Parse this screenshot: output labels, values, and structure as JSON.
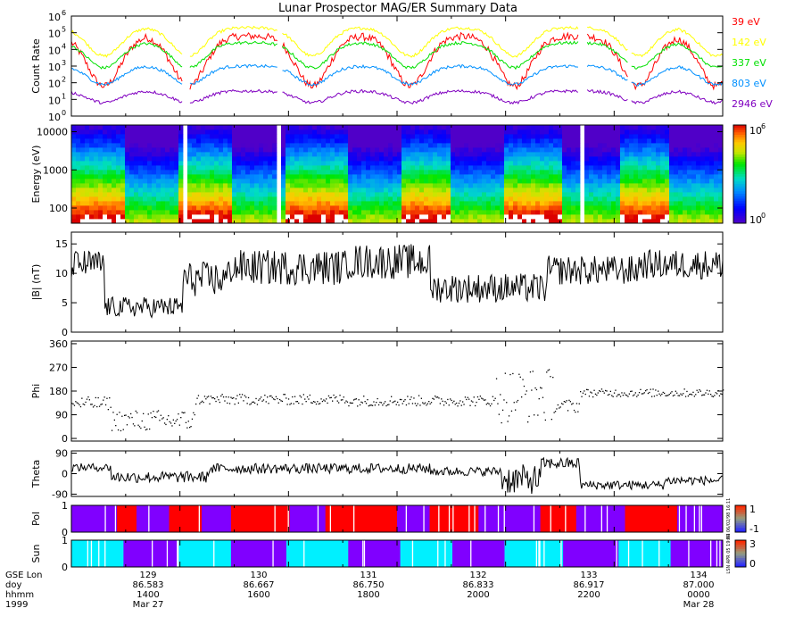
{
  "title": "Lunar Prospector MAG/ER Summary Data",
  "colors": {
    "frame": "#000000",
    "e39": "#ff0000",
    "e142": "#ffff00",
    "e337": "#00e000",
    "e803": "#0090ff",
    "e2946": "#8000c0",
    "pol_pos": "#ff0000",
    "pol_neg": "#8000ff",
    "sun_lit": "#00f0ff",
    "sun_dark": "#8000ff",
    "gap": "#ffffff"
  },
  "chart_data": [
    {
      "id": "count_rate",
      "type": "line",
      "ylabel": "Count Rate",
      "yscale": "log",
      "ylim": [
        1,
        1000000
      ],
      "ytick_base": "10",
      "yticks_exp": [
        "0",
        "1",
        "2",
        "3",
        "4",
        "5",
        "6"
      ],
      "series": [
        {
          "name": "39 eV",
          "color": "#ff0000",
          "shape": [
            1.8,
            4.8
          ]
        },
        {
          "name": "142 eV",
          "color": "#ffff00",
          "shape": [
            3.6,
            5.3
          ]
        },
        {
          "name": "337 eV",
          "color": "#00e000",
          "shape": [
            2.9,
            4.4
          ]
        },
        {
          "name": "803 eV",
          "color": "#0090ff",
          "shape": [
            1.9,
            3.0
          ]
        },
        {
          "name": "2946 eV",
          "color": "#8000c0",
          "shape": [
            0.8,
            1.5
          ]
        }
      ]
    },
    {
      "id": "energy_spectrogram",
      "type": "heatmap",
      "ylabel": "Energy (eV)",
      "yscale": "log",
      "ylim": [
        40,
        15000
      ],
      "yticks": [
        "10000",
        "1000",
        "100"
      ],
      "colorbar": {
        "base": "10",
        "min_exp": "0",
        "max_exp": "6"
      }
    },
    {
      "id": "b_magnitude",
      "type": "line",
      "ylabel": "|B| (nT)",
      "ylim": [
        0,
        17
      ],
      "yticks": [
        "15",
        "10",
        "5",
        "0"
      ],
      "segments": [
        {
          "t": [
            0.0,
            0.05
          ],
          "range": [
            9,
            14
          ]
        },
        {
          "t": [
            0.05,
            0.17
          ],
          "range": [
            2.5,
            6
          ]
        },
        {
          "t": [
            0.17,
            0.24
          ],
          "range": [
            6,
            12
          ]
        },
        {
          "t": [
            0.24,
            0.42
          ],
          "range": [
            8,
            14
          ]
        },
        {
          "t": [
            0.42,
            0.55
          ],
          "range": [
            9,
            15
          ]
        },
        {
          "t": [
            0.55,
            0.73
          ],
          "range": [
            5,
            10
          ]
        },
        {
          "t": [
            0.73,
            0.87
          ],
          "range": [
            8,
            13
          ]
        },
        {
          "t": [
            0.87,
            1.0
          ],
          "range": [
            9,
            14
          ]
        }
      ]
    },
    {
      "id": "phi",
      "type": "scatter",
      "ylabel": "Phi",
      "ylim": [
        -10,
        370
      ],
      "yticks": [
        "360",
        "270",
        "180",
        "90",
        "0"
      ],
      "segments": [
        {
          "t": [
            0.0,
            0.06
          ],
          "range": [
            110,
            160
          ]
        },
        {
          "t": [
            0.06,
            0.19
          ],
          "range": [
            30,
            110
          ]
        },
        {
          "t": [
            0.19,
            0.42
          ],
          "range": [
            130,
            170
          ]
        },
        {
          "t": [
            0.42,
            0.65
          ],
          "range": [
            125,
            165
          ]
        },
        {
          "t": [
            0.65,
            0.74
          ],
          "range": [
            60,
            270
          ]
        },
        {
          "t": [
            0.74,
            0.78
          ],
          "range": [
            100,
            150
          ]
        },
        {
          "t": [
            0.78,
            1.0
          ],
          "range": [
            160,
            190
          ]
        }
      ]
    },
    {
      "id": "theta",
      "type": "line",
      "ylabel": "Theta",
      "ylim": [
        -100,
        100
      ],
      "yticks": [
        "90",
        "0",
        "-90"
      ],
      "segments": [
        {
          "t": [
            0.0,
            0.06
          ],
          "range": [
            10,
            45
          ]
        },
        {
          "t": [
            0.06,
            0.21
          ],
          "range": [
            -40,
            10
          ]
        },
        {
          "t": [
            0.21,
            0.55
          ],
          "range": [
            0,
            45
          ]
        },
        {
          "t": [
            0.55,
            0.66
          ],
          "range": [
            -10,
            30
          ]
        },
        {
          "t": [
            0.66,
            0.72
          ],
          "range": [
            -90,
            40
          ]
        },
        {
          "t": [
            0.72,
            0.78
          ],
          "range": [
            20,
            70
          ]
        },
        {
          "t": [
            0.78,
            0.91
          ],
          "range": [
            -70,
            -30
          ]
        },
        {
          "t": [
            0.91,
            1.0
          ],
          "range": [
            -50,
            -10
          ]
        }
      ]
    },
    {
      "id": "polarity",
      "type": "bar",
      "ylabel": "Pol",
      "ylim": [
        0,
        1
      ],
      "yticks": [
        "1",
        "0"
      ],
      "colorbar_labels": [
        "1",
        "-1"
      ],
      "side_text": "ER 06/02/98 16:11",
      "segments": [
        {
          "t": [
            0.0,
            0.07
          ],
          "v": -1
        },
        {
          "t": [
            0.07,
            0.1
          ],
          "v": 1
        },
        {
          "t": [
            0.1,
            0.15
          ],
          "v": -1
        },
        {
          "t": [
            0.15,
            0.2
          ],
          "v": 1
        },
        {
          "t": [
            0.2,
            0.245
          ],
          "v": -1
        },
        {
          "t": [
            0.245,
            0.335
          ],
          "v": 1
        },
        {
          "t": [
            0.335,
            0.39
          ],
          "v": -1
        },
        {
          "t": [
            0.39,
            0.5
          ],
          "v": 1
        },
        {
          "t": [
            0.5,
            0.55
          ],
          "v": -1
        },
        {
          "t": [
            0.55,
            0.625
          ],
          "v": 1
        },
        {
          "t": [
            0.625,
            0.72
          ],
          "v": -1
        },
        {
          "t": [
            0.72,
            0.775
          ],
          "v": 1
        },
        {
          "t": [
            0.775,
            0.85
          ],
          "v": -1
        },
        {
          "t": [
            0.85,
            0.93
          ],
          "v": 1
        },
        {
          "t": [
            0.93,
            1.0
          ],
          "v": -1
        }
      ]
    },
    {
      "id": "sun",
      "type": "bar",
      "ylabel": "Sun",
      "ylim": [
        0,
        1
      ],
      "yticks": [
        "1",
        "0"
      ],
      "colorbar_labels": [
        "3",
        "0"
      ],
      "side_text": "LSN APR 05 19:43",
      "segments": [
        {
          "t": [
            0.0,
            0.08
          ],
          "v": 1
        },
        {
          "t": [
            0.08,
            0.165
          ],
          "v": 0
        },
        {
          "t": [
            0.165,
            0.245
          ],
          "v": 1
        },
        {
          "t": [
            0.245,
            0.33
          ],
          "v": 0
        },
        {
          "t": [
            0.33,
            0.425
          ],
          "v": 1
        },
        {
          "t": [
            0.425,
            0.505
          ],
          "v": 0
        },
        {
          "t": [
            0.505,
            0.585
          ],
          "v": 1
        },
        {
          "t": [
            0.585,
            0.665
          ],
          "v": 0
        },
        {
          "t": [
            0.665,
            0.755
          ],
          "v": 1
        },
        {
          "t": [
            0.755,
            0.84
          ],
          "v": 0
        },
        {
          "t": [
            0.84,
            0.92
          ],
          "v": 1
        },
        {
          "t": [
            0.92,
            1.0
          ],
          "v": 0
        }
      ]
    }
  ],
  "legend_labels": [
    "39 eV",
    "142 eV",
    "337 eV",
    "803 eV",
    "2946 eV"
  ],
  "time_axis": {
    "row_labels": [
      "GSE Lon",
      "doy",
      "hhmm",
      "1999"
    ],
    "ticks": [
      {
        "lon": "129",
        "doy": "86.583",
        "hhmm": "1400",
        "date": "Mar 27"
      },
      {
        "lon": "130",
        "doy": "86.667",
        "hhmm": "1600",
        "date": ""
      },
      {
        "lon": "131",
        "doy": "86.750",
        "hhmm": "1800",
        "date": ""
      },
      {
        "lon": "132",
        "doy": "86.833",
        "hhmm": "2000",
        "date": ""
      },
      {
        "lon": "133",
        "doy": "86.917",
        "hhmm": "2200",
        "date": ""
      },
      {
        "lon": "134",
        "doy": "87.000",
        "hhmm": "0000",
        "date": "Mar 28"
      }
    ]
  }
}
